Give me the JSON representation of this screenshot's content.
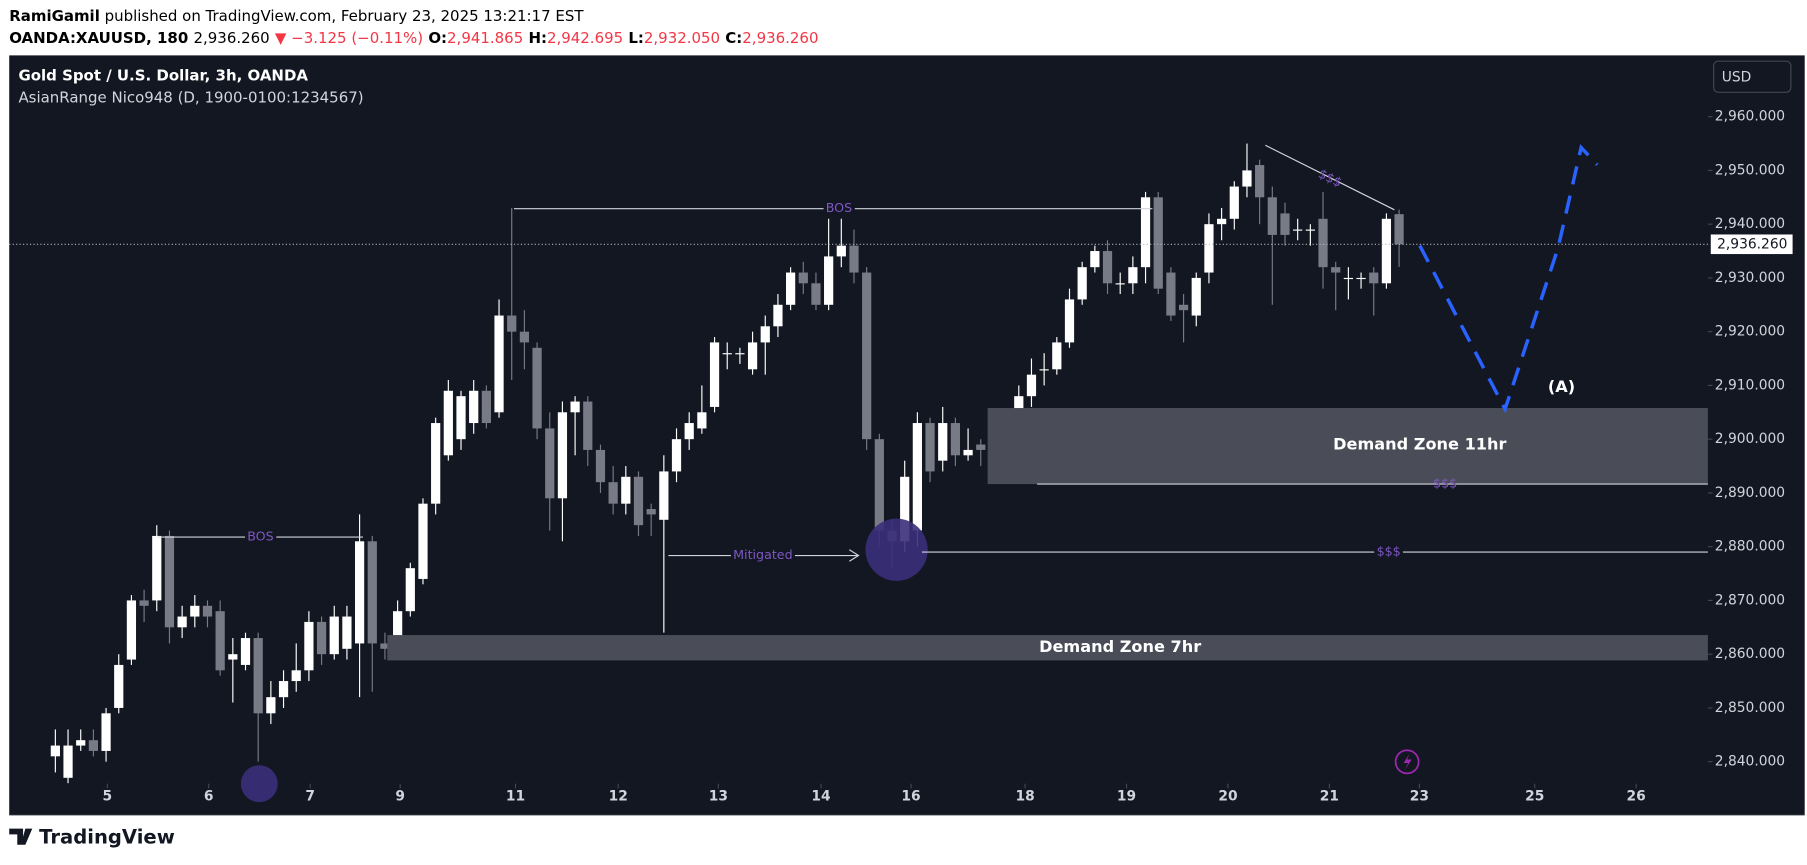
{
  "header": {
    "publisher": "RamiGamil",
    "published": "published on TradingView.com, February 23, 2025 13:21:17 EST",
    "symbol": "OANDA:XAUUSD, 180",
    "last": "2,936.260",
    "change": "▼ −3.125 (−0.11%)",
    "o_label": "O:",
    "o": "2,941.865",
    "h_label": "H:",
    "h": "2,942.695",
    "l_label": "L:",
    "l": "2,932.050",
    "c_label": "C:",
    "c": "2,936.260"
  },
  "footer": {
    "brand": "TradingView"
  },
  "chart_data": {
    "type": "candlestick",
    "title": "Gold Spot / U.S. Dollar, 3h, OANDA",
    "subtitle": "AsianRange Nico948 (D, 1900-0100:1234567)",
    "currency": "USD",
    "up_color": "#ffffff",
    "down_color": "#787b86",
    "background": "#131722",
    "price_line": {
      "value": 2936.26,
      "label": "2,936.260"
    },
    "annotations": {
      "bos": "BOS",
      "mitigated": "Mitigated",
      "liquidity": "$$$",
      "zone_11": "Demand Zone 11hr",
      "zone_7": "Demand Zone 7hr",
      "wave": "(A)"
    },
    "x": [
      0,
      1,
      2,
      3,
      4,
      5,
      6,
      7,
      8,
      9,
      10,
      11,
      12,
      13,
      14,
      15,
      16,
      17,
      18,
      19,
      20,
      21,
      22,
      23,
      24,
      25,
      26,
      27,
      28,
      29,
      30,
      31,
      32,
      33,
      34,
      35,
      36,
      37,
      38,
      39,
      40,
      41,
      42,
      43,
      44,
      45,
      46,
      47,
      48,
      49,
      50,
      51,
      52,
      53,
      54,
      55,
      56,
      57,
      58,
      59,
      60,
      61,
      62,
      63,
      64,
      65,
      66,
      67,
      68,
      69,
      70,
      71,
      72,
      73,
      74,
      75,
      76,
      77,
      78,
      79,
      80,
      81,
      82,
      83,
      84,
      85,
      86,
      87,
      88,
      89,
      90,
      91,
      92,
      93,
      94,
      95,
      96,
      97,
      98,
      99,
      100,
      101,
      102,
      103,
      104,
      105,
      106
    ],
    "open": [
      2841,
      2837,
      2843,
      2844,
      2842,
      2850,
      2859,
      2870,
      2870,
      2882,
      2865,
      2867,
      2869,
      2868,
      2859,
      2858,
      2863,
      2849,
      2852,
      2855,
      2857,
      2866,
      2860,
      2861,
      2862,
      2881,
      2862,
      2862,
      2868,
      2874,
      2888,
      2897,
      2900,
      2903,
      2909,
      2905,
      2923,
      2920,
      2917,
      2902,
      2889,
      2905,
      2907,
      2898,
      2892,
      2888,
      2893,
      2887,
      2885,
      2894,
      2900,
      2902,
      2906,
      2916,
      2916,
      2913,
      2918,
      2921,
      2925,
      2931,
      2929,
      2925,
      2934,
      2936,
      2931,
      2900,
      2883,
      2881,
      2883,
      2903,
      2896,
      2903,
      2897,
      2899,
      2897,
      2897,
      2898,
      2908,
      2913,
      2913,
      2918,
      2926,
      2932,
      2935,
      2929,
      2929,
      2932,
      2945,
      2931,
      2925,
      2923,
      2931,
      2940,
      2941,
      2947,
      2951,
      2945,
      2942,
      2939,
      2939,
      2941,
      2932,
      2930,
      2930,
      2931,
      2929,
      2941.865
    ],
    "high": [
      2846,
      2846,
      2846,
      2846,
      2850,
      2860,
      2871,
      2872,
      2884,
      2883,
      2869,
      2871,
      2870,
      2870,
      2863,
      2864,
      2864,
      2855,
      2857,
      2862,
      2868,
      2867,
      2869,
      2869,
      2886,
      2882,
      2864,
      2870,
      2877,
      2889,
      2904,
      2911,
      2909,
      2911,
      2910,
      2926,
      2943,
      2924,
      2918,
      2905,
      2907,
      2908,
      2908,
      2899,
      2895,
      2895,
      2894,
      2888,
      2897,
      2902,
      2905,
      2910,
      2919,
      2918,
      2917,
      2920,
      2923,
      2927,
      2932,
      2933,
      2931,
      2941,
      2941,
      2939,
      2932,
      2901,
      2885,
      2896,
      2905,
      2904,
      2906,
      2904,
      2902,
      2900,
      2899,
      2900,
      2910,
      2915,
      2916,
      2919,
      2928,
      2933,
      2936,
      2937,
      2931,
      2934,
      2946,
      2946,
      2932,
      2927,
      2931,
      2942,
      2943,
      2948,
      2955,
      2952,
      2947,
      2944,
      2941,
      2940,
      2946,
      2933,
      2932,
      2931,
      2932,
      2942,
      2942.695
    ],
    "low": [
      2838,
      2836,
      2842,
      2841,
      2840,
      2849,
      2858,
      2866,
      2868,
      2862,
      2863,
      2865,
      2865,
      2856,
      2851,
      2857,
      2840,
      2847,
      2850,
      2853,
      2855,
      2858,
      2859,
      2859,
      2852,
      2853,
      2859,
      2860,
      2867,
      2873,
      2886,
      2896,
      2898,
      2901,
      2902,
      2904,
      2911,
      2913,
      2900,
      2883,
      2881,
      2897,
      2895,
      2890,
      2886,
      2886,
      2882,
      2882,
      2864,
      2892,
      2898,
      2901,
      2905,
      2913,
      2914,
      2912,
      2912,
      2919,
      2924,
      2927,
      2924,
      2924,
      2932,
      2929,
      2898,
      2880,
      2876,
      2879,
      2880,
      2892,
      2894,
      2895,
      2896,
      2895,
      2896,
      2896,
      2893,
      2906,
      2910,
      2912,
      2917,
      2925,
      2931,
      2927,
      2927,
      2927,
      2929,
      2927,
      2922,
      2918,
      2921,
      2929,
      2937,
      2939,
      2945,
      2940,
      2925,
      2936,
      2937,
      2936,
      2928,
      2924,
      2926,
      2928,
      2923,
      2928,
      2932.05
    ],
    "close": [
      2843,
      2843,
      2844,
      2842,
      2849,
      2858,
      2870,
      2869,
      2882,
      2865,
      2867,
      2869,
      2867,
      2857,
      2860,
      2863,
      2849,
      2852,
      2855,
      2857,
      2866,
      2860,
      2867,
      2867,
      2881,
      2862,
      2861,
      2868,
      2876,
      2888,
      2903,
      2909,
      2908,
      2909,
      2903,
      2923,
      2920,
      2918,
      2902,
      2889,
      2905,
      2907,
      2898,
      2892,
      2888,
      2893,
      2884,
      2886,
      2894,
      2900,
      2903,
      2905,
      2918,
      2916,
      2916,
      2918,
      2921,
      2925,
      2931,
      2929,
      2925,
      2934,
      2936,
      2931,
      2900,
      2883,
      2881,
      2893,
      2903,
      2894,
      2903,
      2897,
      2898,
      2898,
      2897,
      2898,
      2908,
      2912,
      2913,
      2918,
      2926,
      2932,
      2935,
      2929,
      2929,
      2932,
      2945,
      2928,
      2923,
      2924,
      2930,
      2940,
      2941,
      2947,
      2950,
      2945,
      2938,
      2938,
      2939,
      2939,
      2932,
      2931,
      2930,
      2930,
      2929,
      2941,
      2936.26
    ],
    "xlim": [
      -3.64,
      130.36
    ],
    "ylim": [
      2835.9,
      2971.4
    ],
    "xticks": [
      {
        "value": 4.1,
        "label": "5"
      },
      {
        "value": 12.1,
        "label": "6"
      },
      {
        "value": 20.1,
        "label": "7"
      },
      {
        "value": 27.2,
        "label": "9"
      },
      {
        "value": 36.3,
        "label": "11"
      },
      {
        "value": 44.4,
        "label": "12"
      },
      {
        "value": 52.3,
        "label": "13"
      },
      {
        "value": 60.4,
        "label": "14"
      },
      {
        "value": 67.5,
        "label": "16"
      },
      {
        "value": 76.5,
        "label": "18"
      },
      {
        "value": 84.5,
        "label": "19"
      },
      {
        "value": 92.5,
        "label": "20"
      },
      {
        "value": 100.5,
        "label": "21"
      },
      {
        "value": 107.6,
        "label": "23"
      },
      {
        "value": 116.7,
        "label": "25"
      },
      {
        "value": 124.7,
        "label": "26"
      }
    ],
    "yticks": [
      {
        "value": 2840,
        "label": "2,840.000"
      },
      {
        "value": 2850,
        "label": "2,850.000"
      },
      {
        "value": 2860,
        "label": "2,860.000"
      },
      {
        "value": 2870,
        "label": "2,870.000"
      },
      {
        "value": 2880,
        "label": "2,880.000"
      },
      {
        "value": 2890,
        "label": "2,890.000"
      },
      {
        "value": 2900,
        "label": "2,900.000"
      },
      {
        "value": 2910,
        "label": "2,910.000"
      },
      {
        "value": 2920,
        "label": "2,920.000"
      },
      {
        "value": 2930,
        "label": "2,930.000"
      },
      {
        "value": 2940,
        "label": "2,940.000"
      },
      {
        "value": 2950,
        "label": "2,950.000"
      },
      {
        "value": 2960,
        "label": "2,960.000"
      }
    ]
  }
}
